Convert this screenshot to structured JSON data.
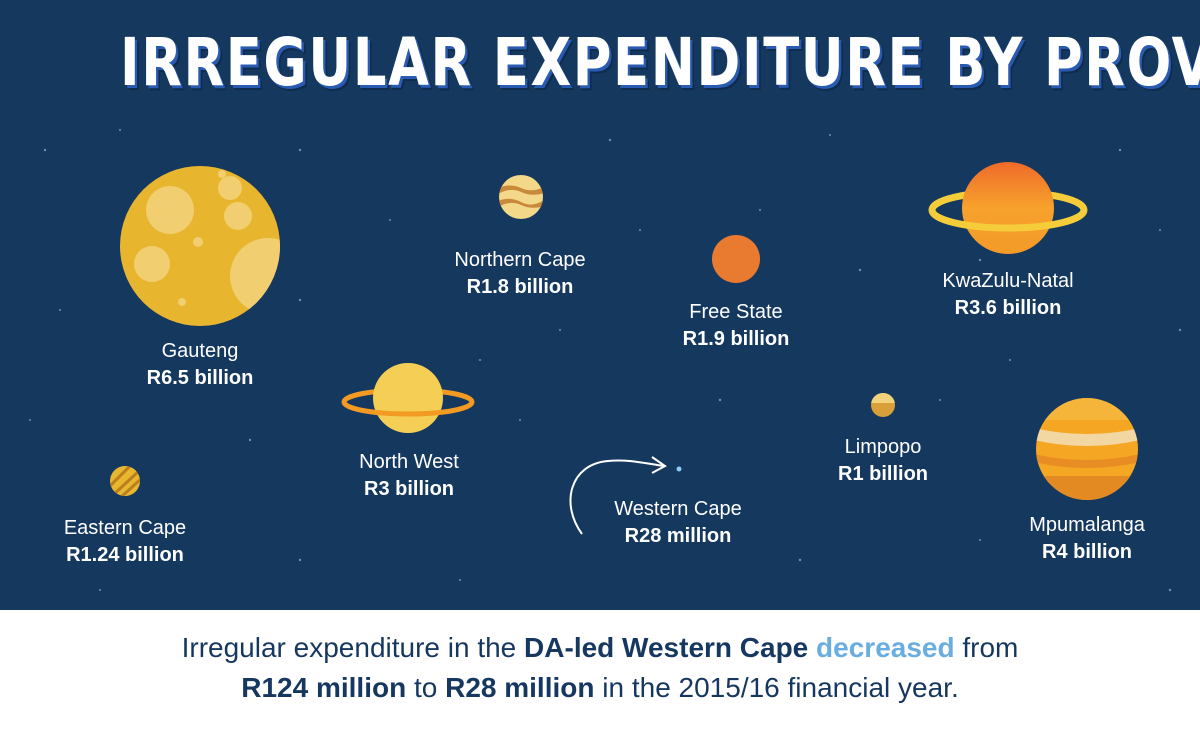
{
  "title": "IRREGULAR EXPENDITURE BY PROVINCE",
  "provinces": [
    {
      "name": "Gauteng",
      "value": "R6.5 billion"
    },
    {
      "name": "Northern Cape",
      "value": "R1.8 billion"
    },
    {
      "name": "Free State",
      "value": "R1.9 billion"
    },
    {
      "name": "KwaZulu-Natal",
      "value": "R3.6 billion"
    },
    {
      "name": "North West",
      "value": "R3 billion"
    },
    {
      "name": "Limpopo",
      "value": "R1 billion"
    },
    {
      "name": "Eastern Cape",
      "value": "R1.24 billion"
    },
    {
      "name": "Western Cape",
      "value": "R28 million"
    },
    {
      "name": "Mpumalanga",
      "value": "R4 billion"
    }
  ],
  "footer": {
    "p1": "Irregular expenditure in the ",
    "b1": "DA-led Western Cape",
    "p2": " ",
    "h1": "decreased",
    "p3": " from",
    "b2": "R124 million",
    "p4": " to ",
    "b3": "R28 million",
    "p5": " in the 2015/16 financial year."
  },
  "colors": {
    "background": "#15385f",
    "accent": "#6aaee0",
    "footer_text": "#16375f"
  }
}
